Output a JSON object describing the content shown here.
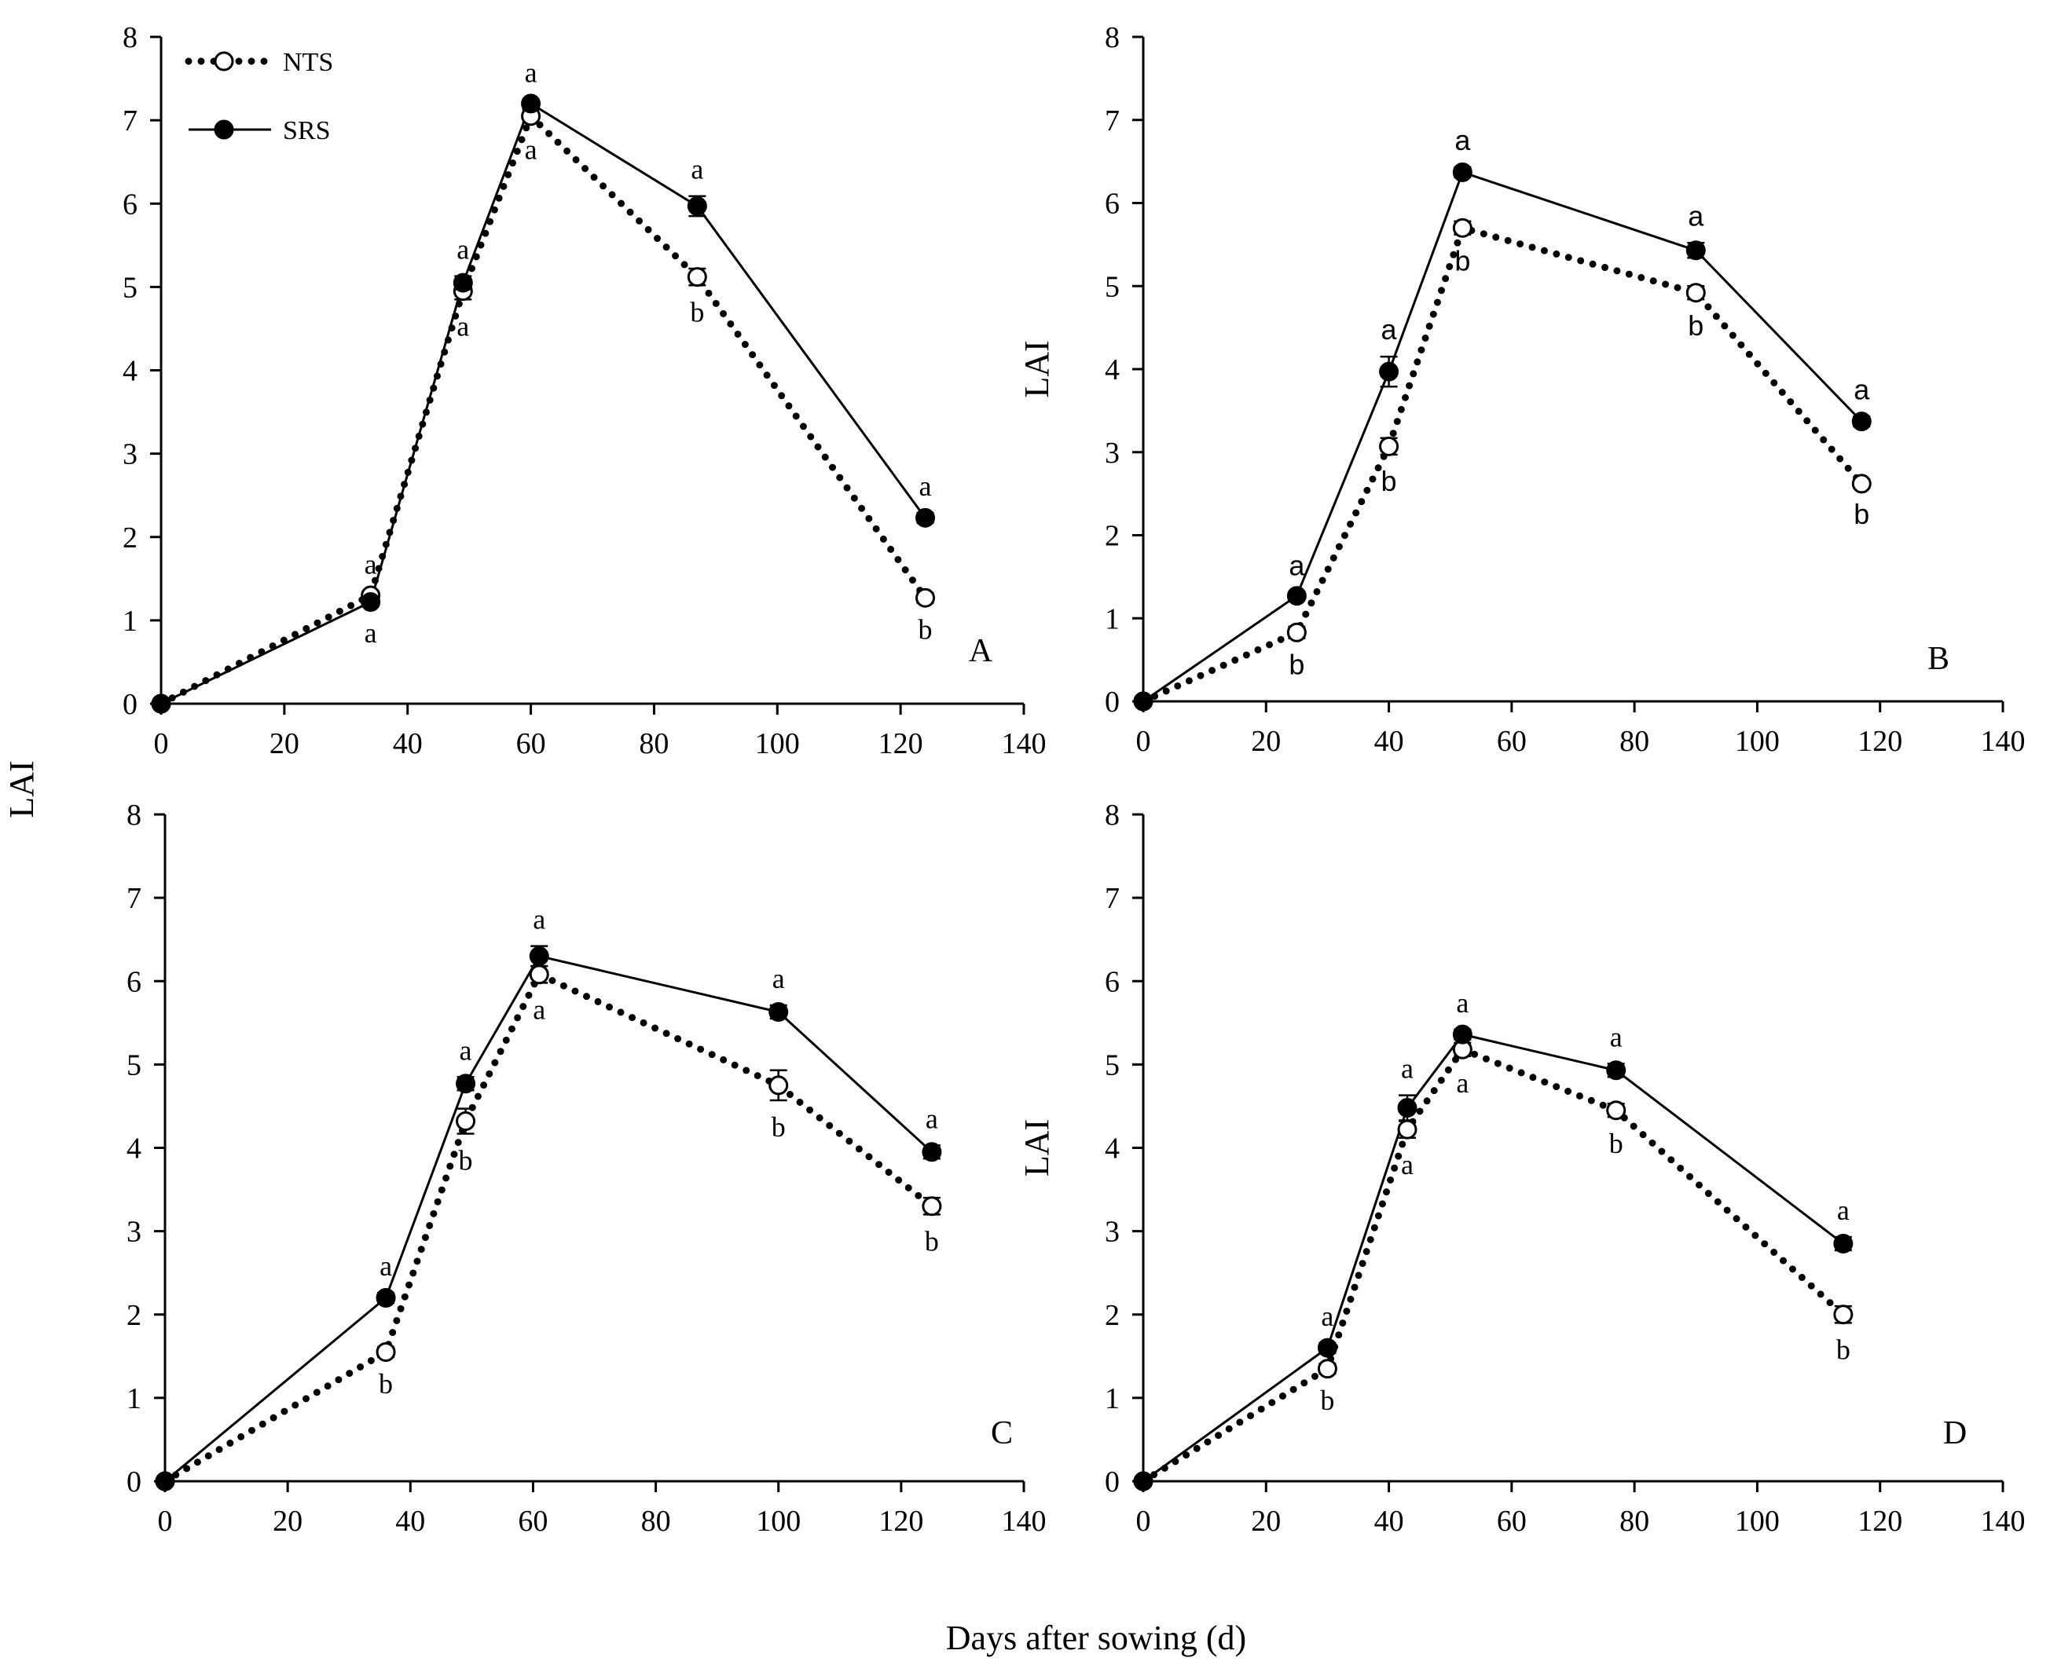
{
  "figure": {
    "y_axis_label": "LAI",
    "x_axis_label": "Days after sowing (d)",
    "legend": [
      {
        "name": "NTS",
        "style": "dotted line, open circle"
      },
      {
        "name": "SRS",
        "style": "solid line, filled circle"
      }
    ]
  },
  "colors": {
    "line": "#000000",
    "background": "#ffffff",
    "open_marker_fill": "#ffffff"
  },
  "chart_data": [
    {
      "panel": "A",
      "type": "line",
      "letter_style": "serif",
      "xlim": [
        0,
        140
      ],
      "ylim": [
        0,
        8
      ],
      "x_ticks": [
        0,
        20,
        40,
        60,
        80,
        100,
        120,
        140
      ],
      "y_ticks": [
        0,
        1,
        2,
        3,
        4,
        5,
        6,
        7,
        8
      ],
      "series": [
        {
          "name": "NTS",
          "x": [
            0,
            34,
            49,
            60,
            87,
            124
          ],
          "y": [
            0,
            1.3,
            4.95,
            7.05,
            5.12,
            1.27
          ],
          "err": [
            0,
            0.05,
            0.1,
            0.08,
            0.1,
            0.06
          ],
          "labels": [
            "",
            "a",
            "a",
            "a",
            "b",
            "b"
          ],
          "label_pos": [
            "",
            "above",
            "below",
            "below",
            "below",
            "below"
          ]
        },
        {
          "name": "SRS",
          "x": [
            0,
            34,
            49,
            60,
            87,
            124
          ],
          "y": [
            0,
            1.22,
            5.05,
            7.2,
            5.97,
            2.23
          ],
          "err": [
            0,
            0.05,
            0.08,
            0.05,
            0.12,
            0.06
          ],
          "labels": [
            "",
            "a",
            "a",
            "a",
            "a",
            "a"
          ],
          "label_pos": [
            "",
            "below",
            "above",
            "above",
            "above",
            "above"
          ]
        }
      ]
    },
    {
      "panel": "B",
      "type": "line",
      "letter_style": "sans",
      "xlim": [
        0,
        140
      ],
      "ylim": [
        0,
        8
      ],
      "x_ticks": [
        0,
        20,
        40,
        60,
        80,
        100,
        120,
        140
      ],
      "y_ticks": [
        0,
        1,
        2,
        3,
        4,
        5,
        6,
        7,
        8
      ],
      "series": [
        {
          "name": "NTS",
          "x": [
            0,
            25,
            40,
            52,
            90,
            117
          ],
          "y": [
            0,
            0.83,
            3.07,
            5.7,
            4.92,
            2.62
          ],
          "err": [
            0,
            0.07,
            0.1,
            0.08,
            0.08,
            0.05
          ],
          "labels": [
            "",
            "b",
            "b",
            "b",
            "b",
            "b"
          ],
          "label_pos": [
            "",
            "below",
            "below",
            "below",
            "below",
            "below"
          ]
        },
        {
          "name": "SRS",
          "x": [
            0,
            25,
            40,
            52,
            90,
            117
          ],
          "y": [
            0,
            1.27,
            3.97,
            6.37,
            5.43,
            3.37
          ],
          "err": [
            0,
            0.04,
            0.18,
            0.06,
            0.09,
            0.06
          ],
          "labels": [
            "",
            "a",
            "a",
            "a",
            "a",
            "a"
          ],
          "label_pos": [
            "",
            "above",
            "above",
            "above",
            "above",
            "above"
          ]
        }
      ]
    },
    {
      "panel": "C",
      "type": "line",
      "letter_style": "serif",
      "xlim": [
        0,
        140
      ],
      "ylim": [
        0,
        8
      ],
      "x_ticks": [
        0,
        20,
        40,
        60,
        80,
        100,
        120,
        140
      ],
      "y_ticks": [
        0,
        1,
        2,
        3,
        4,
        5,
        6,
        7,
        8
      ],
      "series": [
        {
          "name": "NTS",
          "x": [
            0,
            36,
            49,
            61,
            100,
            125
          ],
          "y": [
            0,
            1.55,
            4.32,
            6.08,
            4.75,
            3.3
          ],
          "err": [
            0,
            0.06,
            0.15,
            0.1,
            0.18,
            0.1
          ],
          "labels": [
            "",
            "b",
            "b",
            "a",
            "b",
            "b"
          ],
          "label_pos": [
            "",
            "below",
            "below",
            "below",
            "below",
            "below"
          ]
        },
        {
          "name": "SRS",
          "x": [
            0,
            36,
            49,
            61,
            100,
            125
          ],
          "y": [
            0,
            2.2,
            4.77,
            6.3,
            5.63,
            3.95
          ],
          "err": [
            0,
            0.06,
            0.08,
            0.12,
            0.08,
            0.08
          ],
          "labels": [
            "",
            "a",
            "a",
            "a",
            "a",
            "a"
          ],
          "label_pos": [
            "",
            "above",
            "above",
            "above",
            "above",
            "above"
          ]
        }
      ]
    },
    {
      "panel": "D",
      "type": "line",
      "letter_style": "serif",
      "xlim": [
        0,
        140
      ],
      "ylim": [
        0,
        8
      ],
      "x_ticks": [
        0,
        20,
        40,
        60,
        80,
        100,
        120,
        140
      ],
      "y_ticks": [
        0,
        1,
        2,
        3,
        4,
        5,
        6,
        7,
        8
      ],
      "series": [
        {
          "name": "NTS",
          "x": [
            0,
            30,
            43,
            52,
            77,
            114
          ],
          "y": [
            0,
            1.35,
            4.22,
            5.18,
            4.45,
            2.0
          ],
          "err": [
            0,
            0.06,
            0.1,
            0.08,
            0.08,
            0.1
          ],
          "labels": [
            "",
            "b",
            "a",
            "a",
            "b",
            "b"
          ],
          "label_pos": [
            "",
            "below",
            "below",
            "below",
            "below",
            "below"
          ]
        },
        {
          "name": "SRS",
          "x": [
            0,
            30,
            43,
            52,
            77,
            114
          ],
          "y": [
            0,
            1.6,
            4.48,
            5.36,
            4.93,
            2.85
          ],
          "err": [
            0,
            0.06,
            0.15,
            0.06,
            0.08,
            0.08
          ],
          "labels": [
            "",
            "a",
            "a",
            "a",
            "a",
            "a"
          ],
          "label_pos": [
            "",
            "above",
            "above",
            "above",
            "above",
            "above"
          ]
        }
      ]
    }
  ]
}
